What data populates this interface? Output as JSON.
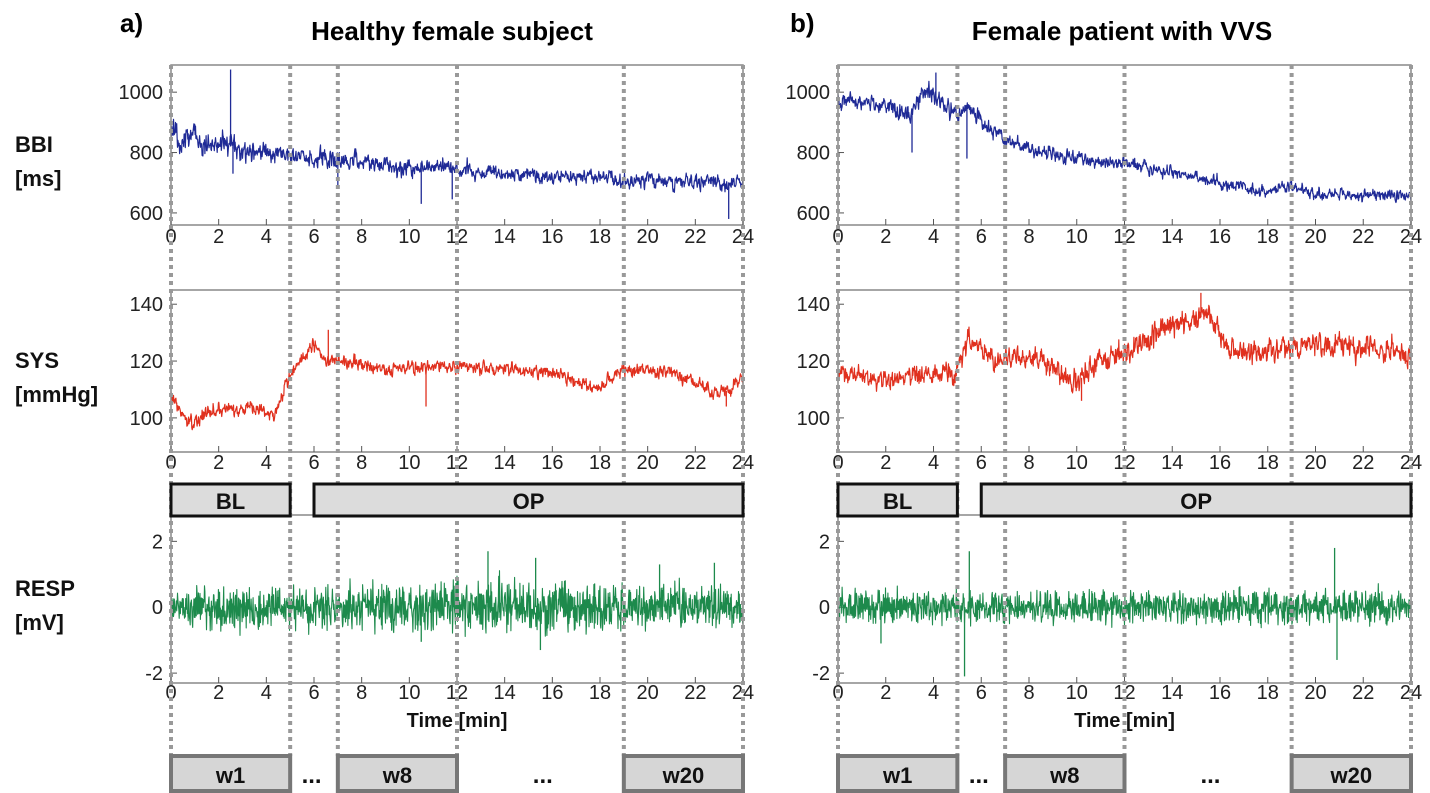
{
  "panels": [
    {
      "letter": "a)",
      "title": "Healthy female subject",
      "rows": [
        {
          "id": "bbi",
          "color": "#1f2a96",
          "ylim": [
            560,
            1090
          ],
          "yticks": [
            "600",
            "800",
            "1000"
          ],
          "ytick_values": [
            600,
            800,
            1000
          ],
          "segments": [
            [
              0,
              850,
              40
            ],
            [
              5,
              790,
              25
            ],
            [
              7,
              770,
              25
            ],
            [
              12,
              745,
              22
            ],
            [
              16,
              720,
              20
            ],
            [
              19,
              710,
              20
            ],
            [
              24,
              700,
              20
            ]
          ],
          "spikes": [
            [
              2.5,
              1075
            ],
            [
              2.6,
              730
            ],
            [
              7.0,
              680
            ],
            [
              10.5,
              630
            ],
            [
              11.8,
              645
            ],
            [
              23.4,
              580
            ]
          ]
        },
        {
          "id": "sys",
          "color": "#e0301e",
          "ylim": [
            88,
            145
          ],
          "yticks": [
            "100",
            "120",
            "140"
          ],
          "ytick_values": [
            100,
            120,
            140
          ],
          "segments": [
            [
              0,
              108,
              2
            ],
            [
              0.8,
              98,
              2
            ],
            [
              2,
              103,
              2.5
            ],
            [
              3.8,
              103,
              2
            ],
            [
              4.3,
              101,
              2
            ],
            [
              5,
              115,
              2
            ],
            [
              6,
              126,
              2
            ],
            [
              6.5,
              120,
              2
            ],
            [
              7,
              120,
              2
            ],
            [
              9,
              117,
              2
            ],
            [
              12,
              118,
              2
            ],
            [
              16,
              116,
              2
            ],
            [
              18,
              110,
              2
            ],
            [
              19,
              117,
              2
            ],
            [
              21,
              116,
              2
            ],
            [
              23,
              108,
              2
            ],
            [
              24,
              113,
              2
            ]
          ],
          "spikes": [
            [
              6.6,
              131
            ],
            [
              10.7,
              104
            ],
            [
              23.3,
              104
            ]
          ]
        },
        {
          "id": "resp",
          "color": "#1d8a4c",
          "ylim": [
            -2.3,
            2.8
          ],
          "yticks": [
            "-2",
            "0",
            "2"
          ],
          "ytick_values": [
            -2,
            0,
            2
          ],
          "segments": [
            [
              0,
              0,
              0.32
            ],
            [
              5,
              0,
              0.3
            ],
            [
              12,
              0,
              0.42
            ],
            [
              17,
              0,
              0.4
            ],
            [
              19,
              0,
              0.32
            ],
            [
              24,
              0,
              0.32
            ]
          ],
          "spikes": [
            [
              10.5,
              -1.05
            ],
            [
              13.3,
              1.7
            ],
            [
              15.3,
              1.5
            ],
            [
              15.5,
              -1.3
            ],
            [
              20.5,
              1.3
            ],
            [
              22.8,
              1.35
            ]
          ]
        }
      ],
      "phases": [
        {
          "label": "BL",
          "from": 0,
          "to": 5
        },
        {
          "label": "OP",
          "from": 6,
          "to": 24
        }
      ],
      "windows": [
        {
          "label": "w1",
          "from": 0,
          "to": 5
        },
        {
          "label": "w8",
          "from": 7,
          "to": 12
        },
        {
          "label": "w20",
          "from": 19,
          "to": 24
        }
      ],
      "ellipses": [
        {
          "label": "...",
          "at": 5.9
        },
        {
          "label": "...",
          "at": 15.6
        }
      ],
      "vlines": [
        0,
        5,
        7,
        12,
        19,
        24
      ]
    },
    {
      "letter": "b)",
      "title": "Female patient with VVS",
      "rows": [
        {
          "id": "bbi",
          "color": "#1f2a96",
          "ylim": [
            560,
            1090
          ],
          "yticks": [
            "600",
            "800",
            "1000"
          ],
          "ytick_values": [
            600,
            800,
            1000
          ],
          "segments": [
            [
              0,
              975,
              20
            ],
            [
              2,
              960,
              20
            ],
            [
              3,
              905,
              30
            ],
            [
              3.5,
              1000,
              20
            ],
            [
              4,
              990,
              25
            ],
            [
              5,
              920,
              25
            ],
            [
              5.5,
              960,
              20
            ],
            [
              6,
              900,
              25
            ],
            [
              7,
              840,
              20
            ],
            [
              10,
              780,
              18
            ],
            [
              13,
              750,
              18
            ],
            [
              16,
              700,
              18
            ],
            [
              18,
              670,
              15
            ],
            [
              19,
              690,
              15
            ],
            [
              20,
              660,
              15
            ],
            [
              24,
              660,
              18
            ]
          ],
          "spikes": [
            [
              3.1,
              800
            ],
            [
              4.1,
              1065
            ],
            [
              5.4,
              780
            ]
          ]
        },
        {
          "id": "sys",
          "color": "#e0301e",
          "ylim": [
            88,
            145
          ],
          "yticks": [
            "100",
            "120",
            "140"
          ],
          "ytick_values": [
            100,
            120,
            140
          ],
          "segments": [
            [
              0,
              116,
              2.5
            ],
            [
              1.5,
              113,
              3
            ],
            [
              3,
              115,
              3
            ],
            [
              5,
              116,
              3
            ],
            [
              5.5,
              128,
              3
            ],
            [
              6.5,
              120,
              3
            ],
            [
              8,
              122,
              3
            ],
            [
              10,
              113,
              3.5
            ],
            [
              12,
              124,
              3.5
            ],
            [
              14,
              133,
              4
            ],
            [
              15.5,
              136,
              3.5
            ],
            [
              16.5,
              124,
              3.5
            ],
            [
              18,
              122,
              3.5
            ],
            [
              19,
              126,
              3.5
            ],
            [
              24,
              124,
              3.5
            ]
          ],
          "spikes": [
            [
              10.2,
              106
            ],
            [
              15.2,
              144
            ]
          ]
        },
        {
          "id": "resp",
          "color": "#1d8a4c",
          "ylim": [
            -2.3,
            2.8
          ],
          "yticks": [
            "-2",
            "0",
            "2"
          ],
          "ytick_values": [
            -2,
            0,
            2
          ],
          "segments": [
            [
              0,
              0,
              0.3
            ],
            [
              5,
              0,
              0.25
            ],
            [
              24,
              0,
              0.25
            ]
          ],
          "spikes": [
            [
              5.3,
              -2.1
            ],
            [
              5.5,
              1.7
            ],
            [
              20.8,
              1.8
            ],
            [
              20.9,
              -1.6
            ],
            [
              1.8,
              -1.1
            ]
          ]
        }
      ],
      "phases": [
        {
          "label": "BL",
          "from": 0,
          "to": 5
        },
        {
          "label": "OP",
          "from": 6,
          "to": 24
        }
      ],
      "windows": [
        {
          "label": "w1",
          "from": 0,
          "to": 5
        },
        {
          "label": "w8",
          "from": 7,
          "to": 12
        },
        {
          "label": "w20",
          "from": 19,
          "to": 24
        }
      ],
      "ellipses": [
        {
          "label": "...",
          "at": 5.9
        },
        {
          "label": "...",
          "at": 15.6
        }
      ],
      "vlines": [
        0,
        5,
        7,
        12,
        19,
        24
      ]
    }
  ],
  "row_labels": [
    {
      "line1": "BBI",
      "line2": "[ms]"
    },
    {
      "line1": "SYS",
      "line2": "[mmHg]"
    },
    {
      "line1": "RESP",
      "line2": "[mV]"
    }
  ],
  "xticks": [
    "0",
    "2",
    "4",
    "6",
    "8",
    "10",
    "12",
    "14",
    "16",
    "18",
    "20",
    "22",
    "24"
  ],
  "xtick_values": [
    0,
    2,
    4,
    6,
    8,
    10,
    12,
    14,
    16,
    18,
    20,
    22,
    24
  ],
  "xlabel": "Time [min]",
  "xlim": [
    0,
    24
  ],
  "chart_data": [
    {
      "type": "line",
      "title": "Healthy female subject",
      "x_unit_label": "Time [min]",
      "series": [
        {
          "name": "BBI [ms]",
          "x": [
            0,
            2,
            4,
            5,
            7,
            10,
            12,
            16,
            19,
            24
          ],
          "values": [
            850,
            860,
            860,
            790,
            770,
            760,
            745,
            720,
            710,
            700
          ]
        },
        {
          "name": "SYS [mmHg]",
          "x": [
            0,
            1,
            2,
            4,
            5,
            6,
            7,
            10,
            12,
            16,
            18,
            19,
            21,
            23,
            24
          ],
          "values": [
            108,
            98,
            103,
            102,
            115,
            126,
            120,
            118,
            118,
            116,
            110,
            117,
            116,
            108,
            113
          ]
        },
        {
          "name": "RESP [mV]",
          "x": [
            0,
            5,
            12,
            17,
            24
          ],
          "values": [
            0,
            0,
            0,
            0,
            0
          ]
        }
      ],
      "xlim": [
        0,
        24
      ]
    },
    {
      "type": "line",
      "title": "Female patient with VVS",
      "x_unit_label": "Time [min]",
      "series": [
        {
          "name": "BBI [ms]",
          "x": [
            0,
            2,
            3,
            4,
            5,
            6,
            7,
            10,
            13,
            16,
            18,
            20,
            24
          ],
          "values": [
            975,
            960,
            905,
            990,
            920,
            900,
            840,
            780,
            750,
            700,
            670,
            660,
            660
          ]
        },
        {
          "name": "SYS [mmHg]",
          "x": [
            0,
            2,
            5,
            6,
            8,
            10,
            12,
            14,
            15.5,
            16.5,
            18,
            19,
            24
          ],
          "values": [
            116,
            113,
            116,
            124,
            122,
            113,
            124,
            133,
            136,
            124,
            122,
            126,
            124
          ]
        },
        {
          "name": "RESP [mV]",
          "x": [
            0,
            5,
            24
          ],
          "values": [
            0,
            0,
            0
          ]
        }
      ],
      "xlim": [
        0,
        24
      ]
    }
  ]
}
